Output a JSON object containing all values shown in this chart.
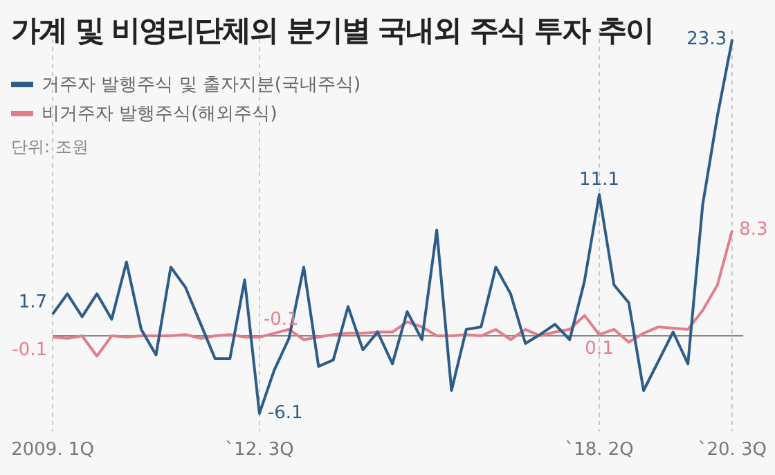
{
  "chart_data": {
    "type": "line",
    "title": "가계 및 비영리단체의 분기별 국내외 주식 투자 추이",
    "categories": [
      "2009. 1Q",
      null,
      null,
      null,
      null,
      null,
      null,
      null,
      null,
      null,
      null,
      null,
      null,
      null,
      "`12. 3Q",
      null,
      null,
      null,
      null,
      null,
      null,
      null,
      null,
      null,
      null,
      null,
      null,
      null,
      null,
      null,
      null,
      null,
      null,
      null,
      null,
      null,
      null,
      "`18. 2Q",
      null,
      null,
      null,
      null,
      null,
      null,
      null,
      null,
      "`20. 3Q"
    ],
    "series": [
      {
        "name": "거주자 발행주식 및 출자지분(국내주식)",
        "color": "#2d5c87",
        "values": [
          1.7,
          3.3,
          1.5,
          3.3,
          1.3,
          5.8,
          0.5,
          -1.5,
          5.4,
          3.8,
          1.0,
          -1.8,
          -1.8,
          4.4,
          -6.1,
          -2.7,
          -0.2,
          5.4,
          -2.4,
          -1.9,
          2.3,
          -1.1,
          0.3,
          -2.2,
          1.9,
          -0.3,
          8.3,
          -4.3,
          0.5,
          0.7,
          5.4,
          3.3,
          -0.6,
          0.1,
          0.9,
          -0.3,
          4.3,
          11.1,
          4.0,
          2.6,
          -4.3,
          -2.0,
          0.3,
          -2.2,
          10.3,
          17.3,
          23.3
        ],
        "value_labels": [
          "1.7",
          null,
          null,
          null,
          null,
          null,
          null,
          null,
          null,
          null,
          null,
          null,
          null,
          null,
          "-6.1",
          null,
          null,
          null,
          null,
          null,
          null,
          null,
          null,
          null,
          null,
          null,
          null,
          null,
          null,
          null,
          null,
          null,
          null,
          null,
          null,
          null,
          null,
          "11.1",
          null,
          null,
          null,
          null,
          null,
          null,
          null,
          null,
          "23.3"
        ]
      },
      {
        "name": "비거주자 발행주식(해외주식)",
        "color": "#e07f8b",
        "values": [
          -0.1,
          -0.2,
          0.0,
          -1.6,
          0.0,
          -0.1,
          0.0,
          0.0,
          0.0,
          0.1,
          -0.2,
          0.0,
          0.1,
          -0.1,
          -0.1,
          0.2,
          0.5,
          -0.3,
          -0.1,
          0.1,
          0.2,
          0.2,
          0.3,
          0.3,
          1.1,
          0.7,
          0.0,
          0.0,
          0.1,
          0.0,
          0.5,
          -0.3,
          0.5,
          0.0,
          0.3,
          0.5,
          1.6,
          0.1,
          0.5,
          -0.5,
          0.2,
          0.7,
          0.6,
          0.5,
          2.0,
          4.0,
          8.3
        ],
        "value_labels": [
          "-0.1",
          null,
          null,
          null,
          null,
          null,
          null,
          null,
          null,
          null,
          null,
          null,
          null,
          null,
          "-0.1",
          null,
          null,
          null,
          null,
          null,
          null,
          null,
          null,
          null,
          null,
          null,
          null,
          null,
          null,
          null,
          null,
          null,
          null,
          null,
          null,
          null,
          null,
          "0.1",
          null,
          null,
          null,
          null,
          null,
          null,
          null,
          null,
          "8.3"
        ]
      }
    ],
    "ylim": [
      -7.5,
      24
    ],
    "tick_labels": "x",
    "grid": "x",
    "legend": "top left",
    "marker": "none",
    "line_style": "solid",
    "ref_lines": [
      {
        "axis": "y",
        "value": 0,
        "color": "#888888"
      }
    ],
    "annotations": [
      "단위: 조원"
    ]
  }
}
